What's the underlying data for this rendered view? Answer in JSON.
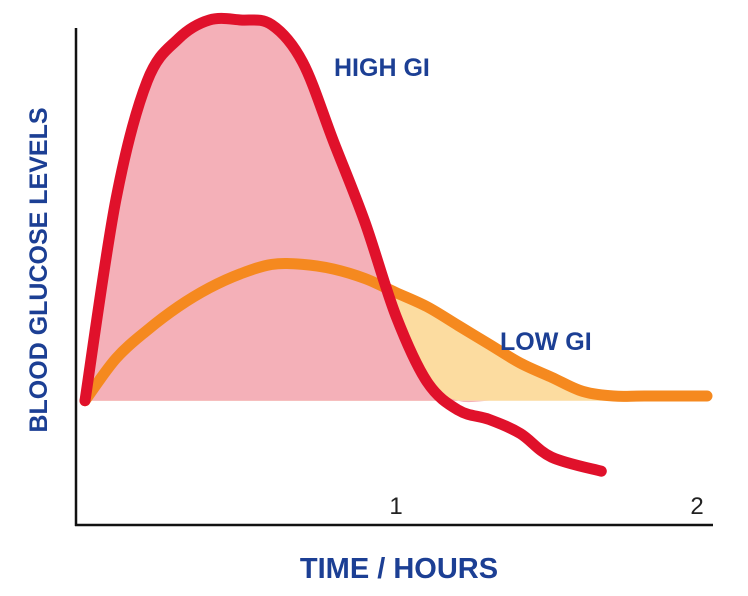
{
  "chart_data": {
    "type": "area",
    "xlabel": "TIME / HOURS",
    "ylabel": "BLOOD GLUCOSE LEVELS",
    "xlim": [
      0,
      2
    ],
    "ylim": [
      0,
      1
    ],
    "x_ticks": [
      {
        "value": 1,
        "label": "1"
      },
      {
        "value": 2,
        "label": "2"
      }
    ],
    "baseline": 0.19,
    "series": [
      {
        "name": "HIGH GI",
        "color": "#e0112b",
        "fill": "#f4b0b8",
        "x": [
          0,
          0.1,
          0.2,
          0.3,
          0.4,
          0.5,
          0.6,
          0.7,
          0.8,
          0.9,
          1.0,
          1.1,
          1.2,
          1.3,
          1.4,
          1.5,
          1.66
        ],
        "y": [
          0.19,
          0.62,
          0.87,
          0.96,
          1.0,
          1.0,
          0.99,
          0.91,
          0.74,
          0.57,
          0.37,
          0.23,
          0.17,
          0.15,
          0.12,
          0.07,
          0.04
        ]
      },
      {
        "name": "LOW GI",
        "color": "#f5891f",
        "fill": "#fcdca0",
        "x": [
          0,
          0.1,
          0.2,
          0.3,
          0.4,
          0.5,
          0.6,
          0.7,
          0.8,
          0.9,
          1.0,
          1.1,
          1.2,
          1.3,
          1.4,
          1.5,
          1.6,
          1.7,
          1.8,
          2.0
        ],
        "y": [
          0.19,
          0.28,
          0.34,
          0.39,
          0.43,
          0.46,
          0.48,
          0.48,
          0.47,
          0.45,
          0.42,
          0.39,
          0.35,
          0.31,
          0.27,
          0.24,
          0.21,
          0.2,
          0.2,
          0.2
        ]
      }
    ]
  }
}
